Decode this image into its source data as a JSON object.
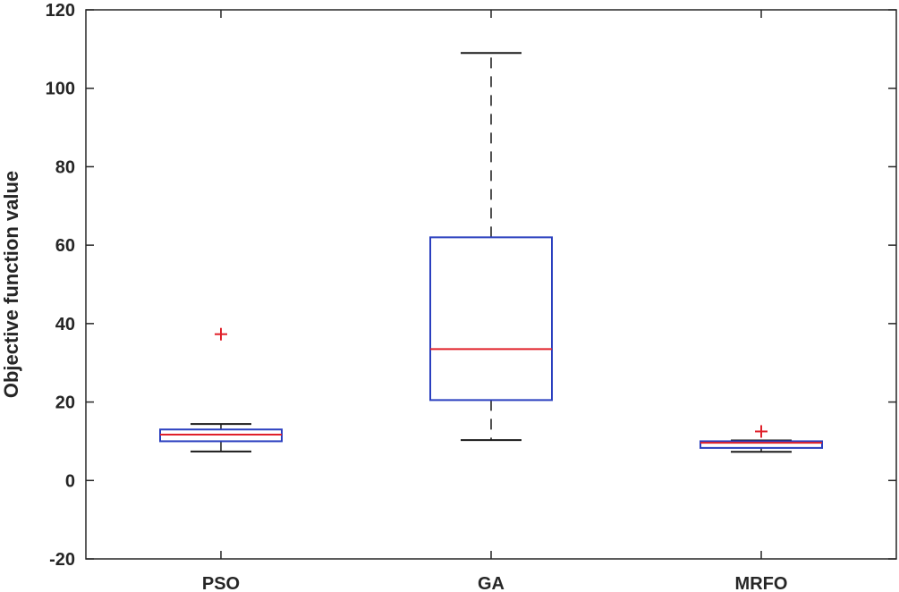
{
  "chart_data": {
    "type": "boxplot",
    "title": "",
    "xlabel": "",
    "ylabel": "Objective function value",
    "ylim": [
      -20,
      120
    ],
    "yticks": [
      "-20",
      "0",
      "20",
      "40",
      "60",
      "80",
      "100",
      "120"
    ],
    "grid": false,
    "categories": [
      "PSO",
      "GA",
      "MRFO"
    ],
    "boxes": [
      {
        "category": "PSO",
        "whisker_low": 7.4,
        "q1": 10.0,
        "median": 11.7,
        "q3": 13.0,
        "whisker_high": 14.4,
        "outliers": [
          37.3
        ]
      },
      {
        "category": "GA",
        "whisker_low": 10.3,
        "q1": 20.5,
        "median": 33.5,
        "q3": 62.0,
        "whisker_high": 109.0,
        "outliers": []
      },
      {
        "category": "MRFO",
        "whisker_low": 7.3,
        "q1": 8.3,
        "median": 9.6,
        "q3": 10.0,
        "whisker_high": 10.2,
        "outliers": [
          12.5
        ]
      }
    ],
    "colors": {
      "box": "#2a3fbf",
      "median": "#e0202a",
      "whisker": "#1a1a1a",
      "outlier": "#e0202a",
      "axis": "#262626"
    }
  }
}
